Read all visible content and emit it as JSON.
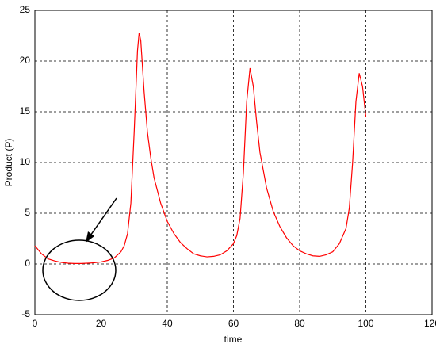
{
  "chart_data": {
    "type": "line",
    "x_label": "time",
    "y_label": "Product (P)",
    "xlim": [
      0,
      120
    ],
    "ylim": [
      -5,
      25
    ],
    "xticks": [
      0,
      20,
      40,
      60,
      80,
      100,
      120
    ],
    "yticks": [
      -5,
      0,
      5,
      10,
      15,
      20,
      25
    ],
    "grid": true,
    "x": [
      0,
      2,
      4,
      6,
      8,
      10,
      12,
      14,
      16,
      18,
      20,
      22,
      24,
      26,
      27,
      28,
      29,
      30,
      31,
      31.5,
      32,
      33,
      34,
      35,
      36,
      38,
      40,
      42,
      44,
      46,
      48,
      50,
      52,
      54,
      56,
      58,
      60,
      61,
      62,
      63,
      64,
      65,
      66,
      67,
      68,
      70,
      72,
      74,
      76,
      78,
      80,
      82,
      84,
      86,
      88,
      90,
      92,
      94,
      95,
      96,
      97,
      98,
      99,
      100
    ],
    "series": [
      {
        "color": "#ff0000",
        "values": [
          1.8,
          1.0,
          0.5,
          0.3,
          0.15,
          0.08,
          0.05,
          0.05,
          0.08,
          0.12,
          0.2,
          0.35,
          0.6,
          1.2,
          1.8,
          3,
          6,
          13,
          21,
          22.8,
          22,
          17,
          13,
          10.5,
          8.5,
          6,
          4.2,
          3,
          2.1,
          1.5,
          1.0,
          0.8,
          0.7,
          0.75,
          0.9,
          1.3,
          2,
          2.8,
          4.5,
          9,
          16,
          19.3,
          17.5,
          14,
          11,
          7.5,
          5.2,
          3.7,
          2.6,
          1.8,
          1.3,
          1.0,
          0.8,
          0.75,
          0.9,
          1.2,
          2,
          3.5,
          5.5,
          10,
          16,
          18.8,
          17.5,
          14.5
        ]
      }
    ]
  }
}
